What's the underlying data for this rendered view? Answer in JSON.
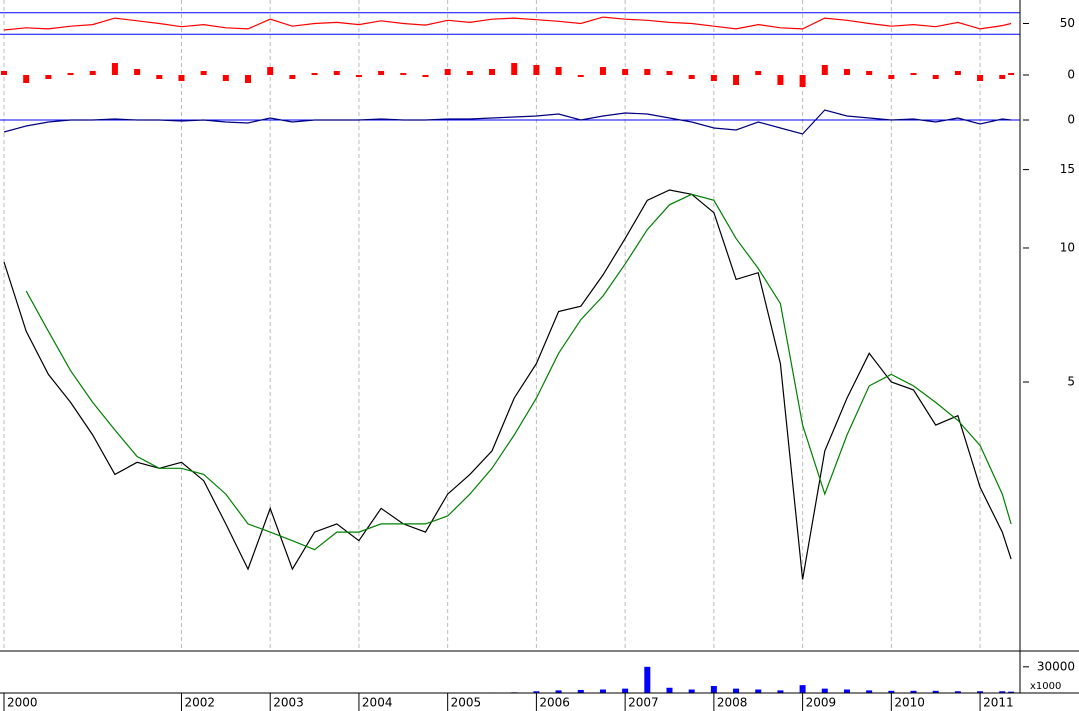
{
  "chart_data": [
    {
      "type": "line",
      "log_scale": true,
      "ylim": [
        1.25,
        16.6
      ],
      "yticks": [
        5,
        10,
        15
      ],
      "xlim": [
        2000,
        2011.45
      ],
      "xticks": [
        2000,
        2002,
        2003,
        2004,
        2005,
        2006,
        2007,
        2008,
        2009,
        2010,
        2011
      ],
      "x": [
        2000,
        2000.25,
        2000.5,
        2000.75,
        2001,
        2001.25,
        2001.5,
        2001.75,
        2002,
        2002.25,
        2002.5,
        2002.75,
        2003,
        2003.25,
        2003.5,
        2003.75,
        2004,
        2004.25,
        2004.5,
        2004.75,
        2005,
        2005.25,
        2005.5,
        2005.75,
        2006,
        2006.25,
        2006.5,
        2006.75,
        2007,
        2007.25,
        2007.5,
        2007.75,
        2008,
        2008.25,
        2008.5,
        2008.75,
        2009,
        2009.25,
        2009.5,
        2009.75,
        2010,
        2010.25,
        2010.5,
        2010.75,
        2011,
        2011.25,
        2011.35
      ],
      "series": [
        {
          "color": "#000000",
          "values": [
            9.3,
            6.5,
            5.2,
            4.5,
            3.8,
            3.1,
            3.3,
            3.2,
            3.3,
            3.0,
            2.4,
            1.9,
            2.6,
            1.9,
            2.3,
            2.4,
            2.2,
            2.6,
            2.4,
            2.3,
            2.8,
            3.1,
            3.5,
            4.6,
            5.5,
            7.2,
            7.4,
            8.7,
            10.5,
            12.8,
            13.5,
            13.2,
            12.0,
            8.5,
            8.8,
            5.5,
            1.8,
            3.5,
            4.6,
            5.8,
            5.0,
            4.8,
            4.0,
            4.2,
            2.9,
            2.3,
            2.0
          ]
        },
        {
          "color": "#008000",
          "values": [
            null,
            8.0,
            6.5,
            5.3,
            4.5,
            3.9,
            3.4,
            3.2,
            3.2,
            3.1,
            2.8,
            2.4,
            2.3,
            2.2,
            2.1,
            2.3,
            2.3,
            2.4,
            2.4,
            2.4,
            2.5,
            2.8,
            3.2,
            3.8,
            4.6,
            5.8,
            6.9,
            7.8,
            9.2,
            11.0,
            12.5,
            13.2,
            12.8,
            10.5,
            9.0,
            7.5,
            4.0,
            2.8,
            3.8,
            4.9,
            5.2,
            4.9,
            4.5,
            4.1,
            3.6,
            2.8,
            2.4
          ]
        }
      ]
    },
    {
      "type": "line",
      "ylim": [
        10,
        90
      ],
      "yticks": [
        50
      ],
      "hlines": [
        70,
        30
      ],
      "series": [
        {
          "color": "#ff0000",
          "values": [
            38,
            42,
            40,
            45,
            48,
            60,
            55,
            50,
            44,
            48,
            42,
            40,
            58,
            45,
            50,
            52,
            48,
            55,
            50,
            47,
            56,
            52,
            58,
            60,
            57,
            54,
            50,
            62,
            58,
            56,
            52,
            50,
            45,
            40,
            48,
            42,
            40,
            60,
            56,
            50,
            45,
            48,
            44,
            52,
            40,
            46,
            50
          ]
        }
      ]
    },
    {
      "type": "bar",
      "ylim": [
        -1,
        1
      ],
      "yticks": [
        0
      ],
      "series": [
        {
          "color": "#ff0000",
          "values": [
            0.2,
            -0.4,
            -0.2,
            0.1,
            0.2,
            0.6,
            0.3,
            -0.2,
            -0.3,
            0.2,
            -0.3,
            -0.4,
            0.4,
            -0.2,
            0.1,
            0.2,
            -0.1,
            0.2,
            0.1,
            -0.1,
            0.3,
            0.2,
            0.3,
            0.6,
            0.5,
            0.4,
            -0.1,
            0.4,
            0.3,
            0.3,
            0.2,
            -0.2,
            -0.3,
            -0.5,
            0.2,
            -0.5,
            -0.6,
            0.5,
            0.3,
            0.2,
            -0.2,
            0.1,
            -0.2,
            0.2,
            -0.3,
            -0.2,
            0.1
          ]
        }
      ]
    },
    {
      "type": "line",
      "ylim": [
        -1,
        1
      ],
      "yticks": [
        0
      ],
      "hlines": [
        0
      ],
      "series": [
        {
          "color": "#000080",
          "values": [
            -0.6,
            -0.3,
            -0.1,
            0,
            0,
            0.05,
            0,
            0,
            -0.05,
            0,
            -0.1,
            -0.15,
            0.1,
            -0.1,
            0,
            0,
            0,
            0.05,
            0,
            0,
            0.05,
            0.05,
            0.1,
            0.15,
            0.2,
            0.3,
            0,
            0.2,
            0.35,
            0.3,
            0.1,
            -0.1,
            -0.4,
            -0.5,
            -0.1,
            -0.4,
            -0.7,
            0.5,
            0.2,
            0.1,
            0,
            0.05,
            -0.1,
            0.1,
            -0.2,
            0.05,
            0
          ]
        }
      ]
    },
    {
      "type": "bar",
      "ylim": [
        0,
        47000
      ],
      "yticks": [
        30000
      ],
      "unit_label": "x1000",
      "series": [
        {
          "color": "#0000ff",
          "values": [
            500,
            400,
            400,
            300,
            300,
            300,
            300,
            300,
            300,
            300,
            300,
            300,
            300,
            300,
            300,
            300,
            300,
            300,
            300,
            300,
            300,
            300,
            600,
            800,
            2000,
            3000,
            3500,
            4000,
            5000,
            30000,
            6000,
            4000,
            8000,
            5000,
            4000,
            3000,
            9000,
            5000,
            4000,
            3000,
            2500,
            2500,
            2500,
            2000,
            2000,
            2000,
            1500
          ]
        }
      ]
    }
  ]
}
